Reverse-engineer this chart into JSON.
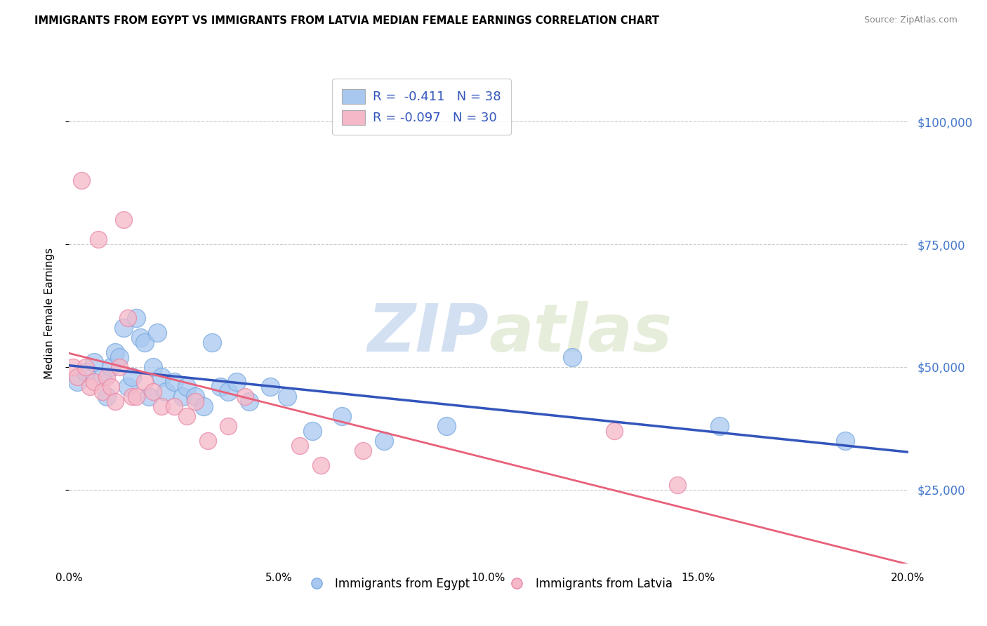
{
  "title": "IMMIGRANTS FROM EGYPT VS IMMIGRANTS FROM LATVIA MEDIAN FEMALE EARNINGS CORRELATION CHART",
  "source": "Source: ZipAtlas.com",
  "ylabel": "Median Female Earnings",
  "xlim": [
    0.0,
    0.2
  ],
  "ylim": [
    10000,
    112000
  ],
  "yticks": [
    25000,
    50000,
    75000,
    100000
  ],
  "ytick_labels": [
    "$25,000",
    "$50,000",
    "$75,000",
    "$100,000"
  ],
  "xticks": [
    0.0,
    0.05,
    0.1,
    0.15,
    0.2
  ],
  "xtick_labels": [
    "0.0%",
    "5.0%",
    "10.0%",
    "15.0%",
    "20.0%"
  ],
  "egypt_color": "#a8c8f0",
  "egypt_edge_color": "#7aaae0",
  "latvia_color": "#f5b8c8",
  "latvia_edge_color": "#e888a8",
  "egypt_line_color": "#3355bb",
  "latvia_line_color": "#e8607a",
  "egypt_R": -0.411,
  "egypt_N": 38,
  "latvia_R": -0.097,
  "latvia_N": 30,
  "legend_label_egypt": "Immigrants from Egypt",
  "legend_label_latvia": "Immigrants from Latvia",
  "watermark_zip": "ZIP",
  "watermark_atlas": "atlas",
  "background_color": "#ffffff",
  "egypt_points_x": [
    0.002,
    0.004,
    0.006,
    0.008,
    0.009,
    0.01,
    0.011,
    0.012,
    0.013,
    0.014,
    0.015,
    0.016,
    0.017,
    0.018,
    0.019,
    0.02,
    0.021,
    0.022,
    0.023,
    0.025,
    0.027,
    0.028,
    0.03,
    0.032,
    0.034,
    0.036,
    0.038,
    0.04,
    0.043,
    0.048,
    0.052,
    0.058,
    0.065,
    0.075,
    0.09,
    0.12,
    0.155,
    0.185
  ],
  "egypt_points_y": [
    47000,
    49000,
    51000,
    48000,
    44000,
    50000,
    53000,
    52000,
    58000,
    46000,
    48000,
    60000,
    56000,
    55000,
    44000,
    50000,
    57000,
    48000,
    45000,
    47000,
    44000,
    46000,
    44000,
    42000,
    55000,
    46000,
    45000,
    47000,
    43000,
    46000,
    44000,
    37000,
    40000,
    35000,
    38000,
    52000,
    38000,
    35000
  ],
  "latvia_points_x": [
    0.001,
    0.002,
    0.003,
    0.004,
    0.005,
    0.006,
    0.007,
    0.008,
    0.009,
    0.01,
    0.011,
    0.012,
    0.013,
    0.014,
    0.015,
    0.016,
    0.018,
    0.02,
    0.022,
    0.025,
    0.028,
    0.03,
    0.033,
    0.038,
    0.042,
    0.055,
    0.06,
    0.07,
    0.13,
    0.145
  ],
  "latvia_points_y": [
    50000,
    48000,
    88000,
    50000,
    46000,
    47000,
    76000,
    45000,
    48000,
    46000,
    43000,
    50000,
    80000,
    60000,
    44000,
    44000,
    47000,
    45000,
    42000,
    42000,
    40000,
    43000,
    35000,
    38000,
    44000,
    34000,
    30000,
    33000,
    37000,
    26000
  ]
}
